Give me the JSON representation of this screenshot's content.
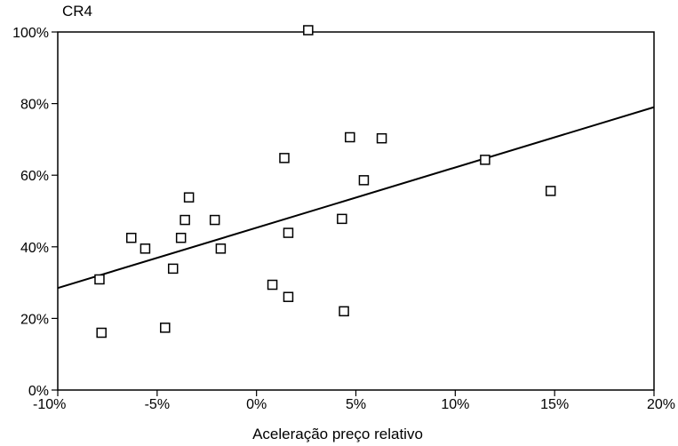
{
  "chart_data": {
    "type": "scatter",
    "ylabel": "CR4",
    "xlabel": "Aceleração preço relativo",
    "xlim": [
      -10,
      20
    ],
    "ylim": [
      0,
      100
    ],
    "x_ticks": [
      -10,
      -5,
      0,
      5,
      10,
      15,
      20
    ],
    "x_tick_labels": [
      "-10%",
      "-5%",
      "0%",
      "5%",
      "10%",
      "15%",
      "20%"
    ],
    "y_ticks": [
      0,
      20,
      40,
      60,
      80,
      100
    ],
    "y_tick_labels": [
      "0%",
      "20%",
      "40%",
      "60%",
      "80%",
      "100%"
    ],
    "grid": false,
    "points": [
      {
        "x": 2.6,
        "y": 100.5
      },
      {
        "x": -7.9,
        "y": 30.9
      },
      {
        "x": -7.8,
        "y": 16.0
      },
      {
        "x": -6.3,
        "y": 42.5
      },
      {
        "x": -5.6,
        "y": 39.5
      },
      {
        "x": -4.6,
        "y": 17.4
      },
      {
        "x": -4.2,
        "y": 33.9
      },
      {
        "x": -3.8,
        "y": 42.5
      },
      {
        "x": -3.6,
        "y": 47.5
      },
      {
        "x": -3.4,
        "y": 53.8
      },
      {
        "x": -2.1,
        "y": 47.5
      },
      {
        "x": -1.8,
        "y": 39.5
      },
      {
        "x": 0.8,
        "y": 29.4
      },
      {
        "x": 1.4,
        "y": 64.8
      },
      {
        "x": 1.6,
        "y": 43.9
      },
      {
        "x": 1.6,
        "y": 26.0
      },
      {
        "x": 4.3,
        "y": 47.8
      },
      {
        "x": 4.4,
        "y": 22.0
      },
      {
        "x": 4.7,
        "y": 70.6
      },
      {
        "x": 5.4,
        "y": 58.6
      },
      {
        "x": 6.3,
        "y": 70.3
      },
      {
        "x": 11.5,
        "y": 64.3
      },
      {
        "x": 14.8,
        "y": 55.6
      }
    ],
    "trend_line": {
      "x": [
        -10,
        20
      ],
      "y": [
        28.5,
        79.0
      ]
    }
  }
}
